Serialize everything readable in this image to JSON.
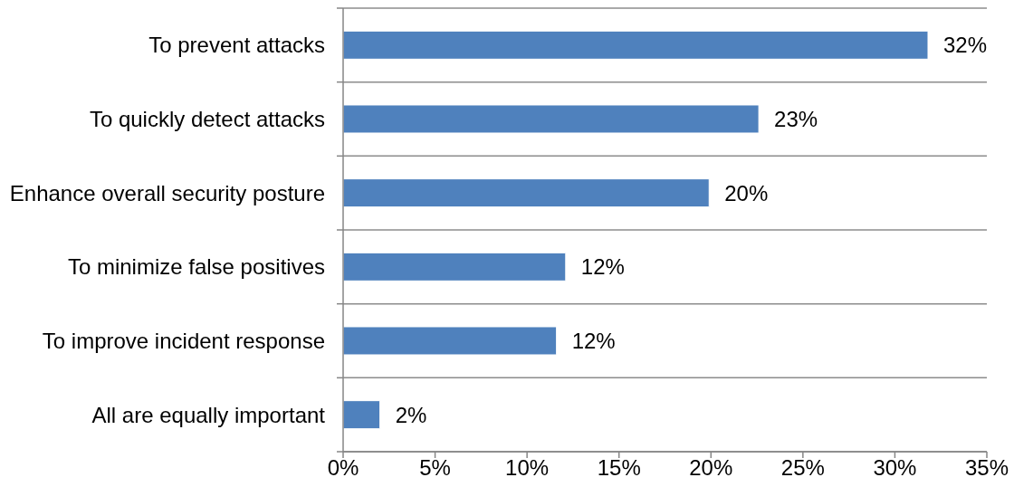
{
  "chart_data": {
    "type": "bar",
    "orientation": "horizontal",
    "categories": [
      "To prevent attacks",
      "To quickly detect attacks",
      "Enhance overall security posture",
      "To minimize false positives",
      "To improve incident response",
      "All are equally important"
    ],
    "values": [
      31.8,
      22.6,
      19.9,
      12.1,
      11.6,
      2.0
    ],
    "value_labels": [
      "32%",
      "23%",
      "20%",
      "12%",
      "12%",
      "2%"
    ],
    "color": "#4f81bd",
    "xlim": [
      0,
      35
    ],
    "xticks": [
      {
        "value": 0,
        "label": "0%"
      },
      {
        "value": 5,
        "label": "5%"
      },
      {
        "value": 10,
        "label": "10%"
      },
      {
        "value": 15,
        "label": "15%"
      },
      {
        "value": 20,
        "label": "20%"
      },
      {
        "value": 25,
        "label": "25%"
      },
      {
        "value": 30,
        "label": "30%"
      },
      {
        "value": 35,
        "label": "35%"
      }
    ],
    "grid": "y"
  }
}
